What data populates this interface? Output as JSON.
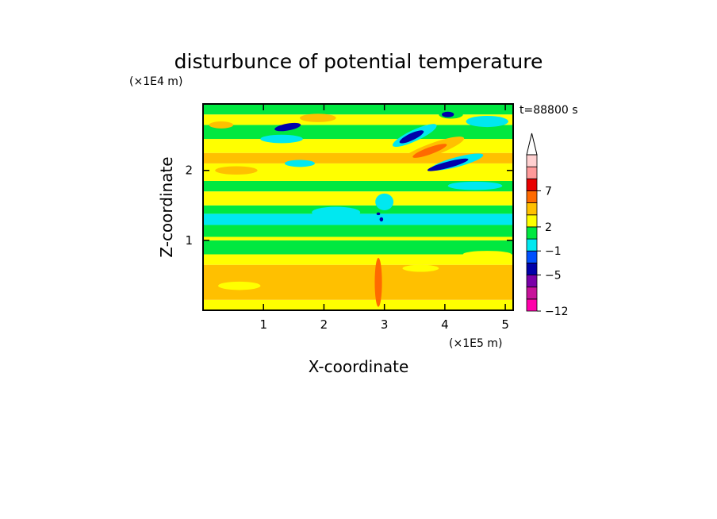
{
  "chart_data": {
    "type": "heatmap",
    "title": "disturbunce of potential temperature",
    "time_label": "t=88800 s",
    "xlabel": "X-coordinate",
    "ylabel": "Z-coordinate",
    "x_scale_label": "(×1E5 m)",
    "y_scale_label": "(×1E4 m)",
    "xlim": [
      0,
      5.13
    ],
    "ylim": [
      0,
      2.95
    ],
    "x_ticks": [
      1,
      2,
      3,
      4,
      5
    ],
    "y_ticks": [
      1,
      2
    ],
    "colorbar": {
      "labels": [
        {
          "value": "7",
          "level": 10
        },
        {
          "value": "2",
          "level": 7
        },
        {
          "value": "−1",
          "level": 5
        },
        {
          "value": "−5",
          "level": 3
        },
        {
          "value": "−12",
          "level": 0
        }
      ],
      "colors": [
        "#ff00aa",
        "#c8129a",
        "#7a00a8",
        "#0000aa",
        "#0050ff",
        "#00e8f0",
        "#00e840",
        "#ffff00",
        "#ffc000",
        "#ff6a00",
        "#e80000",
        "#ff9a9a",
        "#ffd0d0"
      ],
      "extend": "max"
    },
    "bands": [
      {
        "zmin": 0.0,
        "zmax": 0.15,
        "color": "#ffff00"
      },
      {
        "zmin": 0.15,
        "zmax": 0.65,
        "color": "#ffc000"
      },
      {
        "zmin": 0.65,
        "zmax": 0.8,
        "color": "#ffff00"
      },
      {
        "zmin": 0.8,
        "zmax": 1.0,
        "color": "#00e840"
      },
      {
        "zmin": 1.0,
        "zmax": 1.05,
        "color": "#ffff00"
      },
      {
        "zmin": 1.05,
        "zmax": 1.22,
        "color": "#00e840"
      },
      {
        "zmin": 1.22,
        "zmax": 1.38,
        "color": "#00e8f0"
      },
      {
        "zmin": 1.38,
        "zmax": 1.5,
        "color": "#00e840"
      },
      {
        "zmin": 1.5,
        "zmax": 1.7,
        "color": "#ffff00"
      },
      {
        "zmin": 1.7,
        "zmax": 1.85,
        "color": "#00e840"
      },
      {
        "zmin": 1.85,
        "zmax": 2.1,
        "color": "#ffff00"
      },
      {
        "zmin": 2.1,
        "zmax": 2.25,
        "color": "#ffc000"
      },
      {
        "zmin": 2.25,
        "zmax": 2.45,
        "color": "#ffff00"
      },
      {
        "zmin": 2.45,
        "zmax": 2.65,
        "color": "#00e840"
      },
      {
        "zmin": 2.65,
        "zmax": 2.8,
        "color": "#ffff00"
      },
      {
        "zmin": 2.8,
        "zmax": 2.95,
        "color": "#00e840"
      }
    ],
    "features": [
      {
        "type": "blob",
        "x": 1.4,
        "z": 2.62,
        "rx": 0.22,
        "rz": 0.05,
        "angle": -10,
        "color": "#0000aa"
      },
      {
        "type": "blob",
        "x": 1.3,
        "z": 2.45,
        "rx": 0.35,
        "rz": 0.06,
        "angle": 0,
        "color": "#00e8f0"
      },
      {
        "type": "blob",
        "x": 0.55,
        "z": 2.0,
        "rx": 0.35,
        "rz": 0.06,
        "angle": 0,
        "color": "#ffc000"
      },
      {
        "type": "blob",
        "x": 1.6,
        "z": 2.1,
        "rx": 0.25,
        "rz": 0.05,
        "angle": 0,
        "color": "#00e8f0"
      },
      {
        "type": "blob",
        "x": 0.3,
        "z": 2.65,
        "rx": 0.2,
        "rz": 0.05,
        "angle": 0,
        "color": "#ffc000"
      },
      {
        "type": "blob",
        "x": 1.9,
        "z": 2.75,
        "rx": 0.3,
        "rz": 0.06,
        "angle": 0,
        "color": "#ffc000"
      },
      {
        "type": "blob",
        "x": 2.2,
        "z": 1.4,
        "rx": 0.4,
        "rz": 0.08,
        "angle": 0,
        "color": "#00e8f0"
      },
      {
        "type": "blob",
        "x": 3.5,
        "z": 2.5,
        "rx": 0.4,
        "rz": 0.08,
        "angle": -25,
        "color": "#00e8f0"
      },
      {
        "type": "blob",
        "x": 3.45,
        "z": 2.48,
        "rx": 0.22,
        "rz": 0.05,
        "angle": -25,
        "color": "#0000aa"
      },
      {
        "type": "blob",
        "x": 3.8,
        "z": 2.3,
        "rx": 0.55,
        "rz": 0.09,
        "angle": -20,
        "color": "#ffc000"
      },
      {
        "type": "blob",
        "x": 3.75,
        "z": 2.28,
        "rx": 0.3,
        "rz": 0.05,
        "angle": -20,
        "color": "#ff6a00"
      },
      {
        "type": "blob",
        "x": 4.2,
        "z": 2.12,
        "rx": 0.45,
        "rz": 0.07,
        "angle": -15,
        "color": "#00e8f0"
      },
      {
        "type": "blob",
        "x": 4.05,
        "z": 2.08,
        "rx": 0.35,
        "rz": 0.045,
        "angle": -15,
        "color": "#0000aa"
      },
      {
        "type": "blob",
        "x": 4.7,
        "z": 2.7,
        "rx": 0.35,
        "rz": 0.08,
        "angle": 0,
        "color": "#00e8f0"
      },
      {
        "type": "blob",
        "x": 4.1,
        "z": 2.8,
        "rx": 0.2,
        "rz": 0.06,
        "angle": 0,
        "color": "#00e840"
      },
      {
        "type": "blob",
        "x": 4.05,
        "z": 2.8,
        "rx": 0.1,
        "rz": 0.04,
        "angle": 0,
        "color": "#0000aa"
      },
      {
        "type": "blob",
        "x": 4.5,
        "z": 1.78,
        "rx": 0.45,
        "rz": 0.06,
        "angle": 0,
        "color": "#00e8f0"
      },
      {
        "type": "blob",
        "x": 3.0,
        "z": 1.55,
        "rx": 0.15,
        "rz": 0.12,
        "angle": 0,
        "color": "#00e8f0"
      },
      {
        "type": "blob",
        "x": 2.95,
        "z": 1.3,
        "rx": 0.03,
        "rz": 0.03,
        "angle": 0,
        "color": "#0000aa"
      },
      {
        "type": "blob",
        "x": 2.9,
        "z": 1.38,
        "rx": 0.03,
        "rz": 0.02,
        "angle": 0,
        "color": "#0000aa"
      },
      {
        "type": "blob",
        "x": 0.6,
        "z": 0.35,
        "rx": 0.35,
        "rz": 0.06,
        "angle": 0,
        "color": "#ffff00"
      },
      {
        "type": "blob",
        "x": 3.6,
        "z": 0.6,
        "rx": 0.3,
        "rz": 0.05,
        "angle": 0,
        "color": "#ffff00"
      },
      {
        "type": "blob",
        "x": 4.7,
        "z": 0.8,
        "rx": 0.4,
        "rz": 0.05,
        "angle": 0,
        "color": "#ffff00"
      },
      {
        "type": "blob",
        "x": 2.9,
        "z": 0.4,
        "rx": 0.06,
        "rz": 0.35,
        "angle": 0,
        "color": "#ff6a00"
      }
    ]
  }
}
